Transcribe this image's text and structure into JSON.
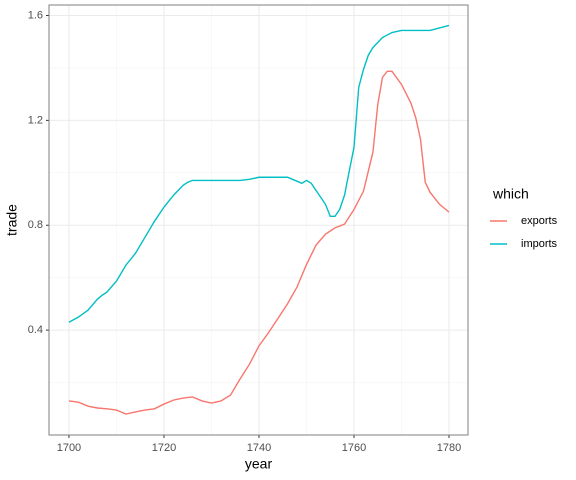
{
  "chart_data": {
    "type": "line",
    "x_label": "year",
    "y_label": "trade",
    "xlim": [
      1695.8,
      1784
    ],
    "ylim": [
      0.0,
      1.64
    ],
    "xticks": [
      1700,
      1720,
      1740,
      1760,
      1780
    ],
    "yticks": [
      0.4,
      0.8,
      1.2,
      1.6
    ],
    "xminor": [
      1710,
      1730,
      1750,
      1770
    ],
    "yminor": [
      0.2,
      0.6,
      1.0,
      1.4
    ],
    "grid": true,
    "legend_title": "which",
    "legend": "right",
    "series": [
      {
        "name": "exports",
        "color": "#F8766D",
        "x": [
          1700,
          1702,
          1704,
          1706,
          1708,
          1710,
          1712,
          1714,
          1716,
          1718,
          1720,
          1722,
          1724,
          1726,
          1728,
          1730,
          1732,
          1734,
          1736,
          1738,
          1740,
          1742,
          1744,
          1746,
          1748,
          1750,
          1752,
          1754,
          1756,
          1758,
          1760,
          1762,
          1764,
          1765,
          1766,
          1767,
          1768,
          1770,
          1772,
          1773,
          1774,
          1775,
          1776,
          1778,
          1780
        ],
        "values": [
          0.13,
          0.125,
          0.11,
          0.103,
          0.1,
          0.095,
          0.08,
          0.088,
          0.095,
          0.1,
          0.118,
          0.133,
          0.141,
          0.145,
          0.13,
          0.122,
          0.13,
          0.152,
          0.213,
          0.27,
          0.34,
          0.39,
          0.445,
          0.5,
          0.564,
          0.65,
          0.724,
          0.766,
          0.79,
          0.804,
          0.86,
          0.93,
          1.08,
          1.26,
          1.364,
          1.387,
          1.387,
          1.337,
          1.265,
          1.21,
          1.128,
          0.964,
          0.926,
          0.88,
          0.85
        ]
      },
      {
        "name": "imports",
        "color": "#00BFC4",
        "x": [
          1700,
          1702,
          1704,
          1706,
          1707,
          1708,
          1710,
          1712,
          1714,
          1716,
          1718,
          1720,
          1722,
          1724,
          1725,
          1726,
          1730,
          1736,
          1738,
          1740,
          1746,
          1748,
          1749,
          1750,
          1751,
          1752,
          1754,
          1755,
          1756,
          1757,
          1758,
          1759,
          1760,
          1761,
          1762,
          1763,
          1764,
          1766,
          1768,
          1770,
          1776,
          1780
        ],
        "values": [
          0.43,
          0.45,
          0.476,
          0.518,
          0.533,
          0.545,
          0.587,
          0.648,
          0.693,
          0.754,
          0.815,
          0.869,
          0.914,
          0.952,
          0.964,
          0.971,
          0.971,
          0.971,
          0.975,
          0.983,
          0.983,
          0.968,
          0.96,
          0.971,
          0.96,
          0.933,
          0.88,
          0.834,
          0.834,
          0.861,
          0.914,
          1.006,
          1.097,
          1.326,
          1.394,
          1.448,
          1.478,
          1.516,
          1.535,
          1.543,
          1.543,
          1.562
        ]
      }
    ]
  }
}
